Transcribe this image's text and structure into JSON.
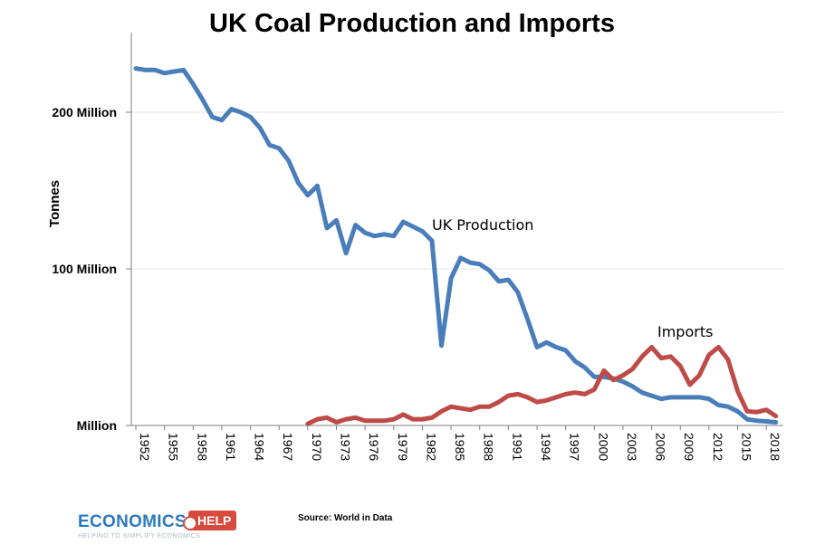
{
  "chart_data": {
    "type": "line",
    "title": "UK Coal Production and Imports",
    "ylabel": "Tonnes",
    "xlabel": "",
    "ylim": [
      0,
      240000000
    ],
    "y_ticks": [
      {
        "value": 0,
        "label": "Million"
      },
      {
        "value": 100000000,
        "label": "100 Million"
      },
      {
        "value": 200000000,
        "label": "200 Million"
      }
    ],
    "x_ticks": [
      1952,
      1955,
      1958,
      1961,
      1964,
      1967,
      1970,
      1973,
      1976,
      1979,
      1982,
      1985,
      1988,
      1991,
      1994,
      1997,
      2000,
      2003,
      2006,
      2009,
      2012,
      2015,
      2018
    ],
    "xlim": [
      1952,
      2019.5
    ],
    "grid": "horizontal",
    "series": [
      {
        "name": "UK Production",
        "color": "#4a7ebb",
        "x": [
          1952,
          1953,
          1954,
          1955,
          1956,
          1957,
          1958,
          1959,
          1960,
          1961,
          1962,
          1963,
          1964,
          1965,
          1966,
          1967,
          1968,
          1969,
          1970,
          1971,
          1972,
          1973,
          1974,
          1975,
          1976,
          1977,
          1978,
          1979,
          1980,
          1981,
          1982,
          1983,
          1984,
          1985,
          1986,
          1987,
          1988,
          1989,
          1990,
          1991,
          1992,
          1993,
          1994,
          1995,
          1996,
          1997,
          1998,
          1999,
          2000,
          2001,
          2002,
          2003,
          2004,
          2005,
          2006,
          2007,
          2008,
          2009,
          2010,
          2011,
          2012,
          2013,
          2014,
          2015,
          2016,
          2017,
          2018,
          2019
        ],
        "values": [
          228000000,
          227000000,
          227000000,
          225000000,
          226000000,
          227000000,
          218000000,
          208000000,
          197000000,
          195000000,
          202000000,
          200000000,
          197000000,
          190000000,
          179000000,
          177000000,
          169000000,
          155000000,
          147000000,
          153000000,
          126000000,
          131000000,
          110000000,
          128000000,
          123000000,
          121000000,
          122000000,
          121000000,
          130000000,
          127000000,
          124000000,
          118000000,
          51000000,
          94000000,
          107000000,
          104000000,
          103000000,
          99000000,
          92000000,
          93000000,
          85000000,
          68000000,
          50000000,
          53000000,
          50000000,
          48000000,
          41000000,
          37000000,
          31000000,
          31000000,
          30000000,
          28000000,
          25000000,
          21000000,
          19000000,
          17000000,
          18000000,
          18000000,
          18000000,
          18000000,
          17000000,
          13000000,
          12000000,
          9000000,
          4000000,
          3000000,
          2600000,
          2000000
        ]
      },
      {
        "name": "Imports",
        "color": "#be4b48",
        "x": [
          1970,
          1971,
          1972,
          1973,
          1974,
          1975,
          1976,
          1977,
          1978,
          1979,
          1980,
          1981,
          1982,
          1983,
          1984,
          1985,
          1986,
          1987,
          1988,
          1989,
          1990,
          1991,
          1992,
          1993,
          1994,
          1995,
          1996,
          1997,
          1998,
          1999,
          2000,
          2001,
          2002,
          2003,
          2004,
          2005,
          2006,
          2007,
          2008,
          2009,
          2010,
          2011,
          2012,
          2013,
          2014,
          2015,
          2016,
          2017,
          2018,
          2019
        ],
        "values": [
          1000000,
          4000000,
          5000000,
          2000000,
          4000000,
          5000000,
          3000000,
          3000000,
          3000000,
          4000000,
          7000000,
          4000000,
          4000000,
          5000000,
          9000000,
          12000000,
          11000000,
          10000000,
          12000000,
          12000000,
          15000000,
          19000000,
          20000000,
          18000000,
          15000000,
          16000000,
          18000000,
          20000000,
          21000000,
          20000000,
          23000000,
          35000000,
          29000000,
          32000000,
          36000000,
          44000000,
          50000000,
          43000000,
          44000000,
          38000000,
          26000000,
          32000000,
          45000000,
          50000000,
          42000000,
          22000000,
          9000000,
          8500000,
          10000000,
          6000000
        ]
      }
    ],
    "annotations": [
      {
        "text": "UK Production"
      },
      {
        "text": "Imports"
      }
    ]
  },
  "footer": {
    "source": "Source: World in Data",
    "logo_word": "ECONOMICS",
    "logo_badge": "HELP",
    "logo_tagline": "HELPING TO SIMPLIFY ECONOMICS"
  }
}
